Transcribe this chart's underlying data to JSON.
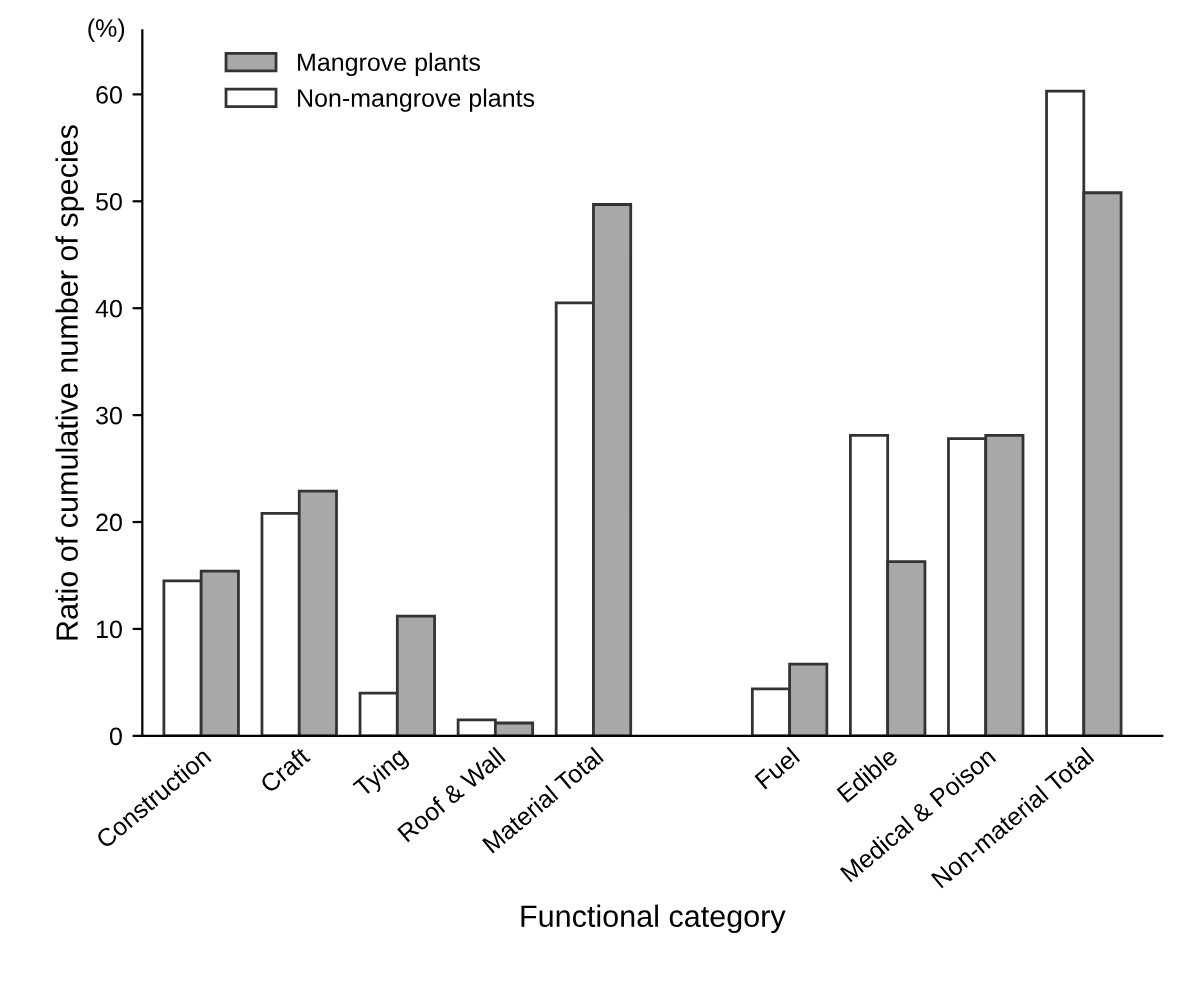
{
  "chart_data": {
    "type": "bar",
    "xlabel": "Functional category",
    "ylabel": "Ratio of cumulative number of species",
    "annotations": [
      "(%)"
    ],
    "categories": [
      "Construction",
      "Craft",
      "Tying",
      "Roof & Wall",
      "Material Total",
      null,
      "Fuel",
      "Edible",
      "Medical & Poison",
      "Non-material Total"
    ],
    "series": [
      {
        "name": "Non-mangrove plants",
        "color": "#ffffff",
        "values": [
          14.5,
          20.8,
          4.0,
          1.5,
          40.5,
          null,
          4.4,
          28.1,
          27.8,
          60.3
        ]
      },
      {
        "name": "Mangrove plants",
        "color": "#a8a8a8",
        "values": [
          15.4,
          22.9,
          11.2,
          1.2,
          49.7,
          null,
          6.7,
          16.3,
          28.1,
          50.8
        ]
      }
    ],
    "ylim": [
      0,
      66
    ],
    "yticks": [
      0,
      10,
      20,
      30,
      40,
      50,
      60
    ],
    "legend": "top left"
  }
}
